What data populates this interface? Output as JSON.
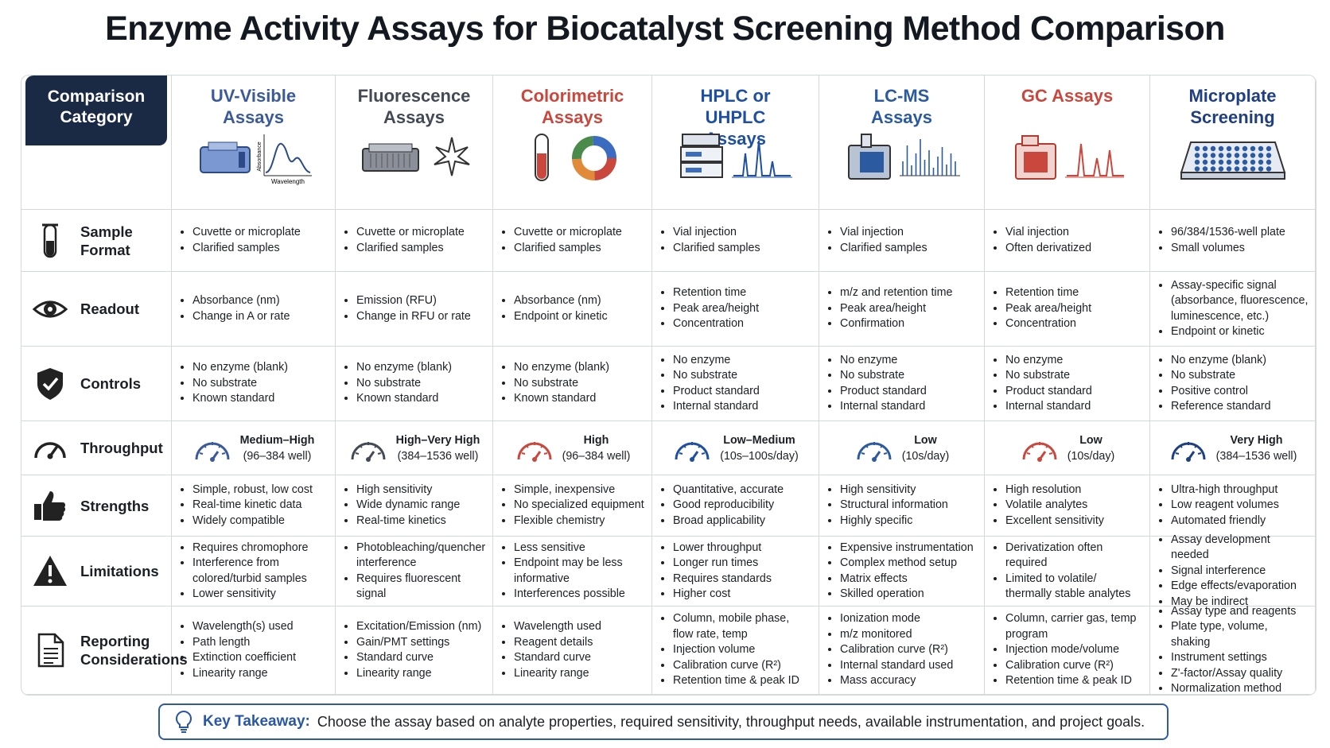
{
  "title": "Enzyme Activity Assays for Biocatalyst Screening Method Comparison",
  "table": {
    "category_label": "Comparison Category",
    "columns": [
      {
        "name": "UV-Visible Assays",
        "color": "#3b5a9a",
        "axis_labels": {
          "y": "Absorbance",
          "x": "Wavelength"
        }
      },
      {
        "name": "Fluorescence Assays",
        "color": "#444a55"
      },
      {
        "name": "Colorimetric Assays",
        "color": "#c9473c"
      },
      {
        "name": "HPLC or UHPLC Assays",
        "color": "#1f4fa0"
      },
      {
        "name": "LC-MS Assays",
        "color": "#2b5aa0"
      },
      {
        "name": "GC Assays",
        "color": "#c9473c"
      },
      {
        "name": "Microplate Screening",
        "color": "#1f3f80",
        "axis_labels": null
      }
    ],
    "rows": [
      {
        "label": "Sample Format",
        "cells": [
          [
            "Cuvette or microplate",
            "Clarified samples"
          ],
          [
            "Cuvette or microplate",
            "Clarified samples"
          ],
          [
            "Cuvette or microplate",
            "Clarified samples"
          ],
          [
            "Vial injection",
            "Clarified samples"
          ],
          [
            "Vial injection",
            "Clarified samples"
          ],
          [
            "Vial injection",
            "Often derivatized"
          ],
          [
            "96/384/1536-well plate",
            "Small volumes"
          ]
        ]
      },
      {
        "label": "Readout",
        "cells": [
          [
            "Absorbance (nm)",
            "Change in A or rate"
          ],
          [
            "Emission (RFU)",
            "Change in RFU or rate"
          ],
          [
            "Absorbance (nm)",
            "Endpoint or kinetic"
          ],
          [
            "Retention time",
            "Peak area/height",
            "Concentration"
          ],
          [
            "m/z and retention time",
            "Peak area/height",
            "Confirmation"
          ],
          [
            "Retention time",
            "Peak area/height",
            "Concentration"
          ],
          [
            "Assay-specific signal (absorbance, fluorescence, luminescence, etc.)",
            "Endpoint or kinetic"
          ]
        ]
      },
      {
        "label": "Controls",
        "cells": [
          [
            "No enzyme (blank)",
            "No substrate",
            "Known standard"
          ],
          [
            "No enzyme (blank)",
            "No substrate",
            "Known standard"
          ],
          [
            "No enzyme (blank)",
            "No substrate",
            "Known standard"
          ],
          [
            "No enzyme",
            "No substrate",
            "Product standard",
            "Internal standard"
          ],
          [
            "No enzyme",
            "No substrate",
            "Product standard",
            "Internal standard"
          ],
          [
            "No enzyme",
            "No substrate",
            "Product standard",
            "Internal standard"
          ],
          [
            "No enzyme (blank)",
            "No substrate",
            "Positive control",
            "Reference standard"
          ]
        ]
      },
      {
        "label": "Throughput",
        "cells": [
          {
            "level": "Medium–High",
            "detail": "(96–384 well)"
          },
          {
            "level": "High–Very High",
            "detail": "(384–1536 well)"
          },
          {
            "level": "High",
            "detail": "(96–384 well)"
          },
          {
            "level": "Low–Medium",
            "detail": "(10s–100s/day)"
          },
          {
            "level": "Low",
            "detail": "(10s/day)"
          },
          {
            "level": "Low",
            "detail": "(10s/day)"
          },
          {
            "level": "Very High",
            "detail": "(384–1536 well)"
          }
        ]
      },
      {
        "label": "Strengths",
        "cells": [
          [
            "Simple, robust, low cost",
            "Real-time kinetic data",
            "Widely compatible"
          ],
          [
            "High sensitivity",
            "Wide dynamic range",
            "Real-time kinetics"
          ],
          [
            "Simple, inexpensive",
            "No specialized equipment",
            "Flexible chemistry"
          ],
          [
            "Quantitative, accurate",
            "Good reproducibility",
            "Broad applicability"
          ],
          [
            "High sensitivity",
            "Structural information",
            "Highly specific"
          ],
          [
            "High resolution",
            "Volatile analytes",
            "Excellent sensitivity"
          ],
          [
            "Ultra-high throughput",
            "Low reagent volumes",
            "Automated friendly"
          ]
        ]
      },
      {
        "label": "Limitations",
        "cells": [
          [
            "Requires chromophore",
            "Interference from colored/turbid samples",
            "Lower sensitivity"
          ],
          [
            "Photobleaching/quencher interference",
            "Requires fluorescent signal"
          ],
          [
            "Less sensitive",
            "Endpoint may be less informative",
            "Interferences possible"
          ],
          [
            "Lower throughput",
            "Longer run times",
            "Requires standards",
            "Higher cost"
          ],
          [
            "Expensive instrumentation",
            "Complex method setup",
            "Matrix effects",
            "Skilled operation"
          ],
          [
            "Derivatization often required",
            "Limited to volatile/ thermally stable analytes"
          ],
          [
            "Assay development needed",
            "Signal interference",
            "Edge effects/evaporation",
            "May be indirect"
          ]
        ]
      },
      {
        "label": "Reporting Considerations",
        "cells": [
          [
            "Wavelength(s) used",
            "Path length",
            "Extinction coefficient",
            "Linearity range"
          ],
          [
            "Excitation/Emission (nm)",
            "Gain/PMT settings",
            "Standard curve",
            "Linearity range"
          ],
          [
            "Wavelength used",
            "Reagent details",
            "Standard curve",
            "Linearity range"
          ],
          [
            "Column, mobile phase, flow rate, temp",
            "Injection volume",
            "Calibration curve (R²)",
            "Retention time & peak ID"
          ],
          [
            "Ionization mode",
            "m/z monitored",
            "Calibration curve (R²)",
            "Internal standard used",
            "Mass accuracy"
          ],
          [
            "Column, carrier gas, temp program",
            "Injection mode/volume",
            "Calibration curve (R²)",
            "Retention time & peak ID"
          ],
          [
            "Assay type and reagents",
            "Plate type, volume, shaking",
            "Instrument settings",
            "Z'-factor/Assay quality",
            "Normalization method"
          ]
        ]
      }
    ]
  },
  "takeaway": {
    "label": "Key Takeaway:",
    "text": "Choose the assay based on analyte properties, required sensitivity, throughput needs, available instrumentation, and project goals."
  }
}
